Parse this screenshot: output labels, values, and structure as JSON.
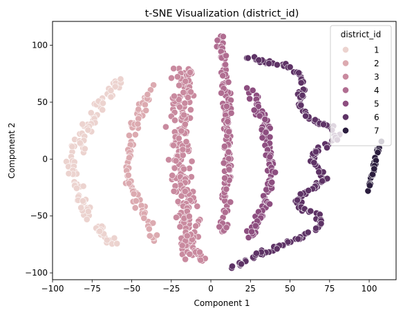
{
  "chart_data": {
    "type": "scatter",
    "title": "t-SNE Visualization (district_id)",
    "xlabel": "Component 1",
    "ylabel": "Component 2",
    "xlim": [
      -100,
      117
    ],
    "ylim": [
      -106,
      121
    ],
    "xticks": [
      -100,
      -75,
      -50,
      -25,
      0,
      25,
      50,
      75,
      100
    ],
    "xtick_labels": [
      "−100",
      "−75",
      "−50",
      "−25",
      "0",
      "25",
      "50",
      "75",
      "100"
    ],
    "yticks": [
      -100,
      -50,
      0,
      50,
      100
    ],
    "ytick_labels": [
      "−100",
      "−50",
      "0",
      "50",
      "100"
    ],
    "grid": false,
    "legend": {
      "title": "district_id",
      "placement": "top-right",
      "entries": [
        "1",
        "2",
        "3",
        "4",
        "5",
        "6",
        "7"
      ]
    },
    "palette": [
      "#ecd3cf",
      "#dcaab0",
      "#c98a9f",
      "#b06d91",
      "#8d4e80",
      "#5e3366",
      "#2b1d3e"
    ],
    "series": [
      {
        "name": "1",
        "color": "#ecd3cf",
        "path": [
          [
            -58,
            72
          ],
          [
            -62,
            62
          ],
          [
            -68,
            52
          ],
          [
            -73,
            40
          ],
          [
            -78,
            28
          ],
          [
            -82,
            15
          ],
          [
            -86,
            2
          ],
          [
            -88,
            -8
          ],
          [
            -86,
            -22
          ],
          [
            -82,
            -38
          ],
          [
            -76,
            -52
          ],
          [
            -70,
            -62
          ],
          [
            -62,
            -72
          ],
          [
            -58,
            -76
          ]
        ],
        "width": 14,
        "density": 7
      },
      {
        "name": "2",
        "color": "#dcaab0",
        "path": [
          [
            -37,
            65
          ],
          [
            -41,
            52
          ],
          [
            -46,
            38
          ],
          [
            -50,
            22
          ],
          [
            -52,
            5
          ],
          [
            -52,
            -10
          ],
          [
            -48,
            -28
          ],
          [
            -43,
            -46
          ],
          [
            -38,
            -60
          ],
          [
            -36,
            -72
          ]
        ],
        "width": 9,
        "density": 6
      },
      {
        "name": "3",
        "color": "#c98a9f",
        "path": [
          [
            -16,
            80
          ],
          [
            -18,
            60
          ],
          [
            -19,
            40
          ],
          [
            -20,
            20
          ],
          [
            -20,
            0
          ],
          [
            -19,
            -20
          ],
          [
            -17,
            -40
          ],
          [
            -15,
            -60
          ],
          [
            -12,
            -80
          ],
          [
            -10,
            -90
          ]
        ],
        "width": 22,
        "density": 14
      },
      {
        "name": "4",
        "color": "#b06d91",
        "path": [
          [
            5,
            110
          ],
          [
            7,
            98
          ],
          [
            8,
            93
          ],
          [
            9,
            75
          ],
          [
            10,
            55
          ],
          [
            10,
            35
          ],
          [
            10,
            15
          ],
          [
            11,
            -5
          ],
          [
            10,
            -25
          ],
          [
            9,
            -45
          ],
          [
            8,
            -65
          ]
        ],
        "width": 8,
        "density": 8
      },
      {
        "name": "5",
        "color": "#8d4e80",
        "path": [
          [
            25,
            62
          ],
          [
            28,
            52
          ],
          [
            32,
            40
          ],
          [
            35,
            25
          ],
          [
            37,
            10
          ],
          [
            38,
            -5
          ],
          [
            37,
            -20
          ],
          [
            34,
            -38
          ],
          [
            30,
            -52
          ],
          [
            27,
            -62
          ],
          [
            24,
            -70
          ]
        ],
        "width": 10,
        "density": 8
      },
      {
        "name": "6",
        "color": "#5e3366",
        "path": [
          [
            22,
            90
          ],
          [
            35,
            85
          ],
          [
            48,
            82
          ],
          [
            55,
            76
          ],
          [
            58,
            68
          ],
          [
            57,
            58
          ],
          [
            56,
            48
          ],
          [
            60,
            38
          ],
          [
            68,
            32
          ],
          [
            78,
            27
          ],
          [
            80,
            20
          ],
          [
            73,
            13
          ],
          [
            66,
            8
          ],
          [
            64,
            -2
          ],
          [
            70,
            -10
          ],
          [
            72,
            -18
          ],
          [
            65,
            -25
          ],
          [
            57,
            -32
          ],
          [
            55,
            -40
          ],
          [
            60,
            -46
          ],
          [
            67,
            -48
          ],
          [
            70,
            -55
          ],
          [
            65,
            -62
          ],
          [
            55,
            -70
          ],
          [
            45,
            -75
          ],
          [
            32,
            -82
          ],
          [
            22,
            -90
          ],
          [
            14,
            -96
          ]
        ],
        "width": 6,
        "density": 7
      },
      {
        "name": "7",
        "color": "#2b1d3e",
        "path": [
          [
            107,
            18
          ],
          [
            105,
            6
          ],
          [
            103,
            -8
          ],
          [
            101,
            -20
          ],
          [
            100,
            -29
          ]
        ],
        "width": 3,
        "density": 5
      }
    ]
  }
}
